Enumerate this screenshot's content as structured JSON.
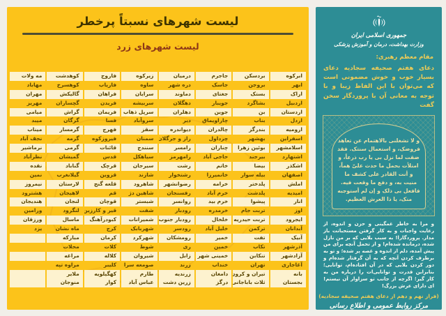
{
  "colors": {
    "page_bg": "#f1efe9",
    "panel_yellow": "#fcc31a",
    "row_cream": "#fdf2cf",
    "cell_text": "#584400",
    "subtitle_red": "#8d3718",
    "panel_teal": "#2d8d95",
    "accent_gold": "#f2cd55"
  },
  "yellow_panel": {
    "title": "لیست شهرهای نسبتاً پرخطر",
    "subtitle": "لیست شهرهای زرد",
    "columns": [
      [
        "ابرکوه",
        "ابهر",
        "اراک",
        "اردبیل",
        "اردستان",
        "اردل",
        "ارومیه",
        "اسفراین",
        "اسلامشهر",
        "اشتهارد",
        "اشکذر",
        "اصفهان",
        "املش",
        "امیدیه",
        "انار",
        "اوز",
        "ایجرود",
        "آبدانان",
        "آبیک",
        "آذرشهر",
        "آزادشهر",
        "آغاجاری",
        "بانه",
        "بجستان"
      ],
      [
        "بردسکن",
        "بروجن",
        "بستک",
        "بشاگرد",
        "بن",
        "بناب",
        "بندرگز",
        "بهشهر",
        "بوئین زهرا",
        "بیرجند",
        "بیضا",
        "بیله سوار",
        "پلدختر",
        "پلدشت",
        "پیشوا",
        "تربت جام",
        "تربت حیدریه",
        "ترکمن",
        "تفت",
        "تکاب",
        "تنکابن",
        "تهران",
        "تیران و کرون",
        "ثلاث باباجانی"
      ],
      [
        "جاجرم",
        "جاسک",
        "جغتای",
        "جویبار",
        "جوین",
        "چاراویماق",
        "چالدران",
        "چرداول",
        "چناران",
        "حاجی آباد",
        "خاتم",
        "خانمیرزا",
        "خرامه",
        "خرم آباد",
        "خرم بید",
        "خرمدره",
        "خلخال",
        "خلیل آباد",
        "خمیر",
        "خمین",
        "خمینی شهر",
        "خنداب",
        "دامغان",
        "درگز"
      ],
      [
        "درمیان",
        "دره شهر",
        "دماوند",
        "دهگلان",
        "دهلران",
        "دیر",
        "دیواندره",
        "راز و جرگلان",
        "رامسر",
        "رامهرمز",
        "رشت",
        "رشتخوار",
        "رضوانشهر",
        "رفسنجان",
        "روانسر",
        "رودبار",
        "رودبار جنوب",
        "رودسر",
        "رومشکان",
        "ری",
        "زابل",
        "زرند",
        "زرندیه",
        "زرین دشت"
      ],
      [
        "زیرکوه",
        "ساوه",
        "سرایان",
        "سربیشه",
        "سرپل ذهاب",
        "سروآباد",
        "سقز",
        "سمنان",
        "سنندج",
        "سیاهکل",
        "سیرجان",
        "شازند",
        "شاهرود",
        "شاهین دژ",
        "شبستر",
        "شفت",
        "شمیرانات",
        "شهربابک",
        "شهرکرد",
        "شوط",
        "شیروان",
        "صومعه سرا",
        "طارم",
        "عباس آباد"
      ],
      [
        "فاروج",
        "فاریاب",
        "فراهان",
        "فریدن",
        "فریمان",
        "فسا",
        "فهرج",
        "فیروزکوه",
        "قائنات",
        "قدس",
        "قرچک",
        "قزوین",
        "قلعه گنج",
        "قم",
        "قوچان",
        "قیر و کارزین",
        "کبودرآهنگ",
        "کرج",
        "کرمان",
        "کلات",
        "کلاله",
        "کلیبر",
        "کهگیلویه",
        "کوار"
      ],
      [
        "کوهدشت",
        "کوهسرخ",
        "گالیکش",
        "گچساران",
        "گراش",
        "گرگان",
        "گرمسار",
        "گرمه",
        "گرمی",
        "گمیشان",
        "گناباد",
        "گیلانغرب",
        "لارستان",
        "لاهیجان",
        "لنجان",
        "لنگرود",
        "ماسال",
        "ماه نشان",
        "مبارکه",
        "محلات",
        "مراغه",
        "مراوه تپه",
        "ملایر",
        "منوجان"
      ],
      [
        "مه ولات",
        "مهاباد",
        "مهران",
        "مهریز",
        "میامی",
        "میبد",
        "میناب",
        "نجف آباد",
        "نرماشیر",
        "نظرآباد",
        "نقده",
        "نمین",
        "نیمروز",
        "هشترود",
        "هندیجان",
        "ورامین",
        "ورزقان",
        "یزد",
        "",
        "",
        "",
        "",
        "",
        ""
      ]
    ]
  },
  "teal_panel": {
    "org_line1": "جمهوری اسلامی ایران",
    "org_line2": "وزارت بهداشت، درمان و آموزش پزشکی",
    "leader_label": "مقام معظم رهبری:",
    "leader_quote": "دعای هفتم صحیفه سجادیه دعای بسیار خوب و خوش مضمونی است که می‌توان با این الفاظ زیبا و با توجه به معانی آن با پروردگار سخن گفت",
    "arabic_prayer": "و لا تشغلنی بالاهتمام عن تعاهد فروضک، و استعمال سنتک. فقد ضقت لما نزل بی یا رب ذرعاً، و امتلأت بحمل ما حدث علیّ هماً، و أنت القادر علی کشف ما منیت به، و دفع ما وقعت فیه. فافعل بی ذلک و إن لم أستوجبه منک، یا ذا العرش العظیم.",
    "translation": "و مرا به خاطر غمگینی و حزن و اندوه، از رعایت واجبات و به کار گرفتن مستحباتت باز مدار. پروردگارا! به سبب بلایی که بر من نازل شده، درمانده شده‌ام! و از تحمل آنچه برای من پیش آمده، دلم از اندوه و غصه پر شده؛ و تو به برطرف کردن آنچه که به آن گرفتار شده‌ام و دور کردن بلایی که در آن افتاده‌ام، توانایی؛ بنابراین قدرت و توانایی‌ات را درباره من به کار گیر؛ اگرچه از جانب تو سزاوار آن نیستم! ای دارای عرش بزرگ!",
    "citation": "(فراز نهم و دهم از دعای هفتم صحیفه سجادیه)",
    "footer": "مرکز روابط عمومی و اطلاع رسانی"
  }
}
